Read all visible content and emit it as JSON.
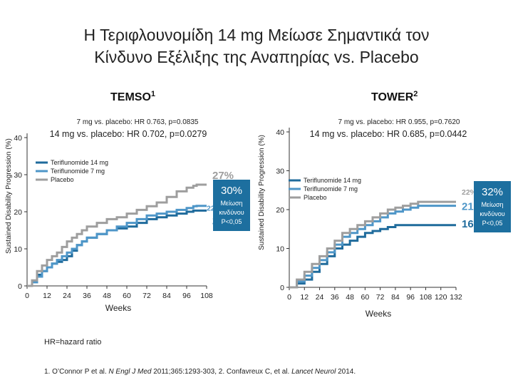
{
  "title": {
    "line1": "Η Τεριφλουνομίδη 14 mg Μείωσε Σημαντικά τον",
    "line2": "Κίνδυνο Εξέλιξης της Αναπηρίας vs. Placebo"
  },
  "colors": {
    "t14": "#1f6b9c",
    "t7": "#4e96c8",
    "placebo": "#9e9e9e",
    "badge": "#1d6f9f"
  },
  "chart_data": [
    {
      "type": "line",
      "name": "TEMSO",
      "title": "TEMSO",
      "title_sup": "1",
      "hr_7mg": "7 mg vs. placebo: HR 0.763, p=0.0835",
      "hr_14mg": "14 mg vs. placebo: HR 0.702, p=0.0279",
      "ylabel": "Sustained Disability Progression (%)",
      "xlabel": "Weeks",
      "xlim": [
        0,
        108
      ],
      "ylim": [
        0,
        40
      ],
      "xticks": [
        "0",
        "12",
        "24",
        "36",
        "48",
        "60",
        "72",
        "84",
        "96",
        "108"
      ],
      "yticks": [
        "0",
        "10",
        "20",
        "30",
        "40"
      ],
      "legend": [
        "Teriflunomide 14 mg",
        "Teriflunomide 7 mg",
        "Placebo"
      ],
      "series": [
        {
          "name": "Teriflunomide 14 mg",
          "color_key": "t14",
          "x": [
            0,
            3,
            6,
            9,
            12,
            15,
            18,
            21,
            24,
            27,
            30,
            33,
            36,
            42,
            48,
            54,
            60,
            66,
            72,
            78,
            84,
            90,
            96,
            100,
            102,
            104,
            108
          ],
          "y": [
            0,
            1,
            3,
            4,
            5,
            6,
            6.5,
            7,
            8,
            9.5,
            11,
            12,
            13,
            14,
            15,
            15.5,
            16,
            17,
            18,
            18.5,
            19,
            19.5,
            20,
            20.3,
            20.3,
            20.3,
            20.3
          ],
          "end_label": "20%",
          "end_style": "big"
        },
        {
          "name": "Teriflunomide 7 mg",
          "color_key": "t7",
          "x": [
            0,
            3,
            6,
            9,
            12,
            15,
            18,
            21,
            24,
            27,
            30,
            33,
            36,
            42,
            48,
            54,
            60,
            66,
            72,
            78,
            84,
            90,
            96,
            100,
            102,
            104,
            108
          ],
          "y": [
            0,
            1,
            2.5,
            4,
            5,
            6,
            7,
            8,
            9,
            10,
            11,
            12,
            13,
            14,
            15,
            16,
            17,
            18,
            19,
            19.5,
            20,
            20.5,
            21,
            21.5,
            21.6,
            21.6,
            21.6
          ],
          "end_label": "22%",
          "end_style": "small"
        },
        {
          "name": "Placebo",
          "color_key": "placebo",
          "x": [
            0,
            3,
            6,
            9,
            12,
            15,
            18,
            21,
            24,
            27,
            30,
            33,
            36,
            42,
            48,
            54,
            60,
            66,
            72,
            78,
            84,
            90,
            96,
            100,
            102,
            104,
            108
          ],
          "y": [
            0,
            1.5,
            4,
            5.5,
            7,
            8,
            9,
            10.5,
            12,
            13,
            14,
            15,
            16,
            17,
            18,
            18.5,
            19.5,
            20.5,
            21.5,
            22.5,
            24,
            25.5,
            26.5,
            27,
            27.3,
            27.3,
            27.3
          ],
          "end_label": "27%",
          "end_style": "big"
        }
      ],
      "badge": {
        "pct": "30%",
        "text1": "Μείωση",
        "text2": "κινδύνου",
        "text3": "P<0,05"
      }
    },
    {
      "type": "line",
      "name": "TOWER",
      "title": "TOWER",
      "title_sup": "2",
      "hr_7mg": "7 mg vs. placebo: HR 0.955, p=0.7620",
      "hr_14mg": "14 mg vs. placebo: HR 0.685, p=0.0442",
      "ylabel": "Sustained Disability Progression (%)",
      "xlabel": "Weeks",
      "xlim": [
        0,
        132
      ],
      "ylim": [
        0,
        40
      ],
      "xticks": [
        "0",
        "12",
        "24",
        "36",
        "48",
        "60",
        "72",
        "84",
        "96",
        "108",
        "120",
        "132"
      ],
      "yticks": [
        "0",
        "10",
        "20",
        "30",
        "40"
      ],
      "legend": [
        "Teriflunomide 14 mg",
        "Teriflunomide 7 mg",
        "Placebo"
      ],
      "series": [
        {
          "name": "Teriflunomide 14 mg",
          "color_key": "t14",
          "x": [
            0,
            6,
            12,
            18,
            24,
            30,
            36,
            42,
            48,
            54,
            60,
            66,
            72,
            78,
            84,
            90,
            96,
            102,
            108,
            114,
            120,
            126,
            132
          ],
          "y": [
            0,
            1,
            2,
            4,
            6,
            8,
            10,
            11,
            12,
            13,
            14,
            14.5,
            15,
            15.5,
            16,
            16,
            16,
            16,
            16,
            16,
            16,
            16,
            16
          ],
          "end_label": "16%",
          "end_style": "big"
        },
        {
          "name": "Teriflunomide 7 mg",
          "color_key": "t7",
          "x": [
            0,
            6,
            12,
            18,
            24,
            30,
            36,
            42,
            48,
            54,
            60,
            66,
            72,
            78,
            84,
            90,
            96,
            102,
            108,
            114,
            120,
            126,
            132
          ],
          "y": [
            0,
            1.5,
            3,
            5,
            7,
            9,
            11,
            13,
            14,
            15,
            16,
            17,
            18,
            19,
            19.5,
            20,
            20.5,
            21,
            21,
            21,
            21,
            21,
            21
          ],
          "end_label": "21%",
          "end_style": "big"
        },
        {
          "name": "Placebo",
          "color_key": "placebo",
          "x": [
            0,
            6,
            12,
            18,
            24,
            30,
            36,
            42,
            48,
            54,
            60,
            66,
            72,
            78,
            84,
            90,
            96,
            102,
            108,
            114,
            120,
            126,
            132
          ],
          "y": [
            0,
            2,
            4,
            6,
            8,
            10,
            12,
            14,
            15,
            16,
            17,
            18,
            19,
            20,
            20.5,
            21,
            21.5,
            22,
            22,
            22,
            22,
            22,
            22
          ],
          "end_label": "22%",
          "end_style": "small"
        }
      ],
      "badge": {
        "pct": "32%",
        "text1": "Μείωση",
        "text2": "κινδύνου",
        "text3": "P<0,05"
      }
    }
  ],
  "footnote": "HR=hazard ratio",
  "references": {
    "ref1_prefix": "1. O’Connor P et al. ",
    "ref1_journal": "N Engl J Med",
    "ref1_suffix": " 2011;365:1293-303, 2. Confavreux C, et al. ",
    "ref2_journal": "Lancet Neurol",
    "ref2_suffix": " 2014."
  }
}
